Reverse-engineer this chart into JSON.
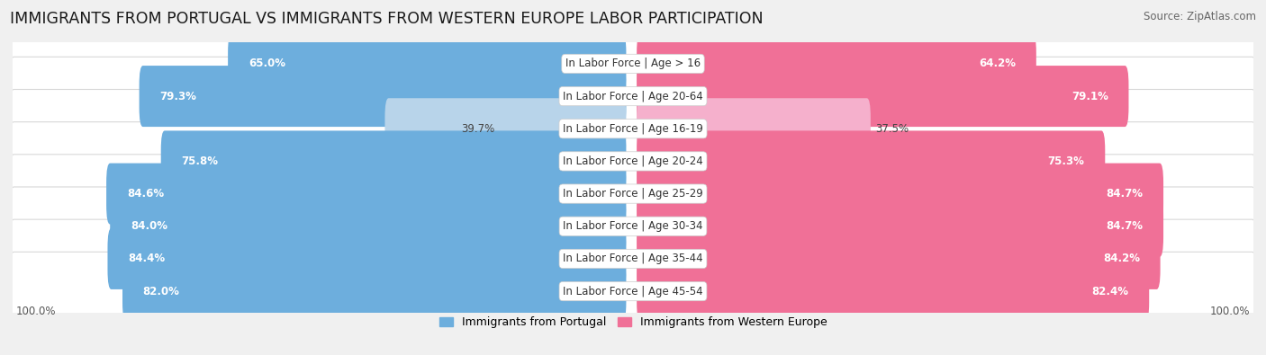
{
  "title": "IMMIGRANTS FROM PORTUGAL VS IMMIGRANTS FROM WESTERN EUROPE LABOR PARTICIPATION",
  "source": "Source: ZipAtlas.com",
  "categories": [
    "In Labor Force | Age > 16",
    "In Labor Force | Age 20-64",
    "In Labor Force | Age 16-19",
    "In Labor Force | Age 20-24",
    "In Labor Force | Age 25-29",
    "In Labor Force | Age 30-34",
    "In Labor Force | Age 35-44",
    "In Labor Force | Age 45-54"
  ],
  "portugal_values": [
    65.0,
    79.3,
    39.7,
    75.8,
    84.6,
    84.0,
    84.4,
    82.0
  ],
  "western_values": [
    64.2,
    79.1,
    37.5,
    75.3,
    84.7,
    84.7,
    84.2,
    82.4
  ],
  "portugal_color": "#6daedd",
  "portugal_color_light": "#b8d4ea",
  "western_color": "#f07097",
  "western_color_light": "#f5b0cc",
  "max_value": 100.0,
  "legend_portugal": "Immigrants from Portugal",
  "legend_western": "Immigrants from Western Europe",
  "bg_color": "#f0f0f0",
  "row_bg_color": "#f7f7f7",
  "title_fontsize": 12.5,
  "label_fontsize": 9,
  "value_fontsize": 8.5,
  "source_fontsize": 8.5
}
